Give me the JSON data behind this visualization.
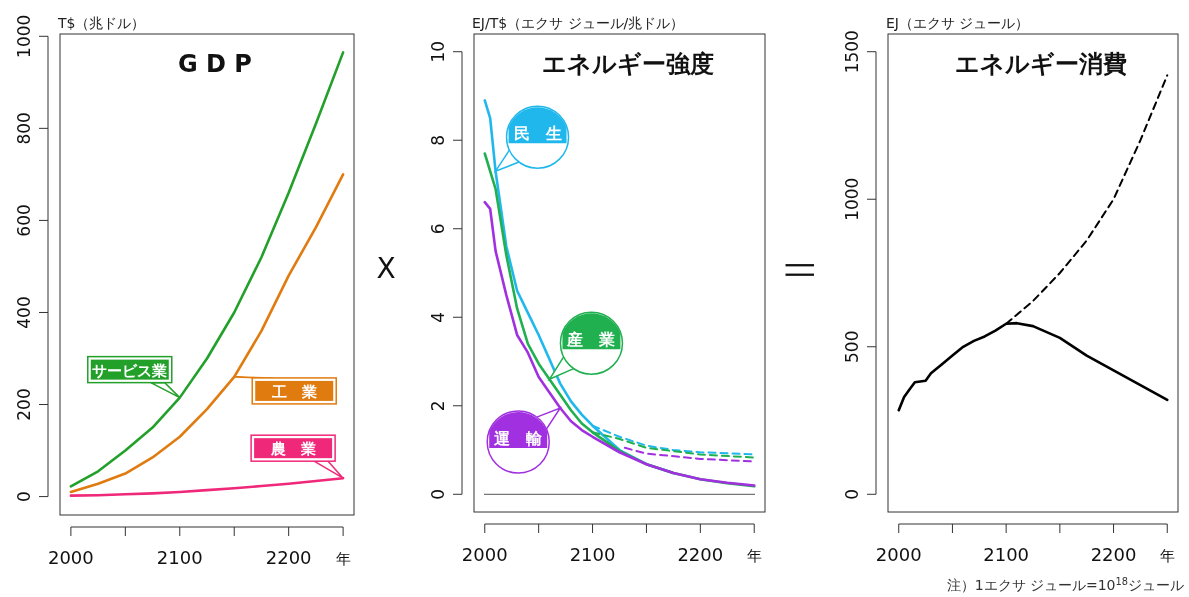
{
  "chart_data": [
    {
      "type": "line",
      "title": "G D P",
      "ylabel": "T$（兆ドル）",
      "xlim": [
        1990,
        2260
      ],
      "ylim": [
        -40,
        1005
      ],
      "xticks": [
        2000,
        {
          "value": 2050,
          "label": null
        },
        2100,
        {
          "value": 2150,
          "label": null
        },
        2200,
        {
          "value": 2250,
          "label": "年"
        }
      ],
      "yticks": [
        0,
        200,
        400,
        600,
        800,
        1000
      ],
      "grid": false,
      "series": [
        {
          "name": "サービス業",
          "color": "#22a02a",
          "x": [
            2000,
            2025,
            2050,
            2075,
            2100,
            2125,
            2150,
            2175,
            2200,
            2225,
            2250
          ],
          "values": [
            22,
            55,
            100,
            150,
            215,
            300,
            400,
            520,
            660,
            810,
            965
          ]
        },
        {
          "name": "工　業",
          "color": "#e07b10",
          "x": [
            2000,
            2025,
            2050,
            2075,
            2100,
            2125,
            2150,
            2175,
            2200,
            2225,
            2250
          ],
          "values": [
            10,
            28,
            50,
            85,
            130,
            190,
            260,
            360,
            480,
            585,
            700
          ]
        },
        {
          "name": "農　業",
          "color": "#f0287a",
          "x": [
            2000,
            2025,
            2050,
            2075,
            2100,
            2125,
            2150,
            2175,
            2200,
            2225,
            2250
          ],
          "values": [
            2,
            3,
            5,
            7,
            10,
            14,
            18,
            23,
            28,
            34,
            40
          ]
        }
      ]
    },
    {
      "type": "line",
      "title": "エネルギー強度",
      "ylabel": "EJ/T$（エクサ ジュール/兆ドル）",
      "xlim": [
        1990,
        2260
      ],
      "ylim": [
        -0.4,
        10.4
      ],
      "xticks": [
        2000,
        {
          "value": 2050,
          "label": null
        },
        2100,
        {
          "value": 2150,
          "label": null
        },
        2200,
        {
          "value": 2250,
          "label": "年"
        }
      ],
      "yticks": [
        0,
        2,
        4,
        6,
        8,
        10
      ],
      "grid": false,
      "annotations": [
        "X"
      ],
      "ref_lines": [
        {
          "axis": "y",
          "value": 0,
          "color": "#777777"
        }
      ],
      "series": [
        {
          "name": "民　生",
          "color": "#20b8ec",
          "x": [
            2000,
            2005,
            2010,
            2020,
            2030,
            2040,
            2050,
            2060,
            2070,
            2080,
            2090,
            2100,
            2125,
            2150,
            2175
          ],
          "values": [
            8.9,
            8.5,
            7.3,
            5.6,
            4.6,
            4.1,
            3.6,
            3.05,
            2.5,
            2.1,
            1.8,
            1.55,
            1.0,
            0.68,
            0.48
          ]
        },
        {
          "name": "産　業",
          "color": "#20b050",
          "x": [
            2000,
            2010,
            2020,
            2030,
            2040,
            2050,
            2060,
            2070,
            2080,
            2090,
            2100,
            2125,
            2150,
            2175,
            2200,
            2225,
            2250
          ],
          "values": [
            7.7,
            6.9,
            5.4,
            4.2,
            3.4,
            2.95,
            2.6,
            2.25,
            1.9,
            1.6,
            1.4,
            0.98,
            0.68,
            0.48,
            0.34,
            0.25,
            0.18
          ]
        },
        {
          "name": "運　輸",
          "color": "#a030e0",
          "x": [
            2000,
            2005,
            2010,
            2020,
            2030,
            2040,
            2050,
            2060,
            2070,
            2080,
            2090,
            2100,
            2125,
            2150,
            2175,
            2200,
            2225,
            2250
          ],
          "values": [
            6.6,
            6.45,
            5.5,
            4.5,
            3.6,
            3.2,
            2.65,
            2.3,
            1.95,
            1.65,
            1.45,
            1.3,
            0.95,
            0.68,
            0.48,
            0.34,
            0.26,
            0.2
          ]
        },
        {
          "color": "#20b8ec",
          "line_style": "dashed",
          "x": [
            2100,
            2125,
            2150,
            2175,
            2200,
            2250
          ],
          "values": [
            1.55,
            1.3,
            1.1,
            1.0,
            0.95,
            0.9
          ]
        },
        {
          "color": "#20b050",
          "line_style": "dashed",
          "x": [
            2100,
            2125,
            2150,
            2200,
            2250
          ],
          "values": [
            1.4,
            1.25,
            1.05,
            0.9,
            0.83
          ]
        },
        {
          "color": "#a030e0",
          "line_style": "dashed",
          "x": [
            2130,
            2150,
            2200,
            2250
          ],
          "values": [
            1.05,
            0.92,
            0.8,
            0.74
          ]
        }
      ]
    },
    {
      "type": "line",
      "title": "エネルギー消費",
      "ylabel": "EJ（エクサ ジュール）",
      "xlim": [
        1990,
        2260
      ],
      "ylim": [
        -60,
        1560
      ],
      "xticks": [
        2000,
        {
          "value": 2050,
          "label": null
        },
        2100,
        {
          "value": 2150,
          "label": null
        },
        2200,
        {
          "value": 2250,
          "label": "年"
        }
      ],
      "yticks": [
        0,
        500,
        1000,
        1500
      ],
      "grid": false,
      "annotations": [
        "||",
        "注）1エクサ ジュール=10$^{18}$ジュール"
      ],
      "series": [
        {
          "color": "#000000",
          "x": [
            2000,
            2005,
            2010,
            2015,
            2025,
            2030,
            2040,
            2050,
            2060,
            2070,
            2080,
            2090,
            2100,
            2110,
            2125,
            2150,
            2175,
            2200,
            2225,
            2250
          ],
          "values": [
            285,
            330,
            355,
            380,
            385,
            410,
            440,
            470,
            500,
            520,
            535,
            555,
            578,
            580,
            570,
            530,
            470,
            420,
            370,
            320
          ]
        },
        {
          "color": "#000000",
          "line_style": "dashed",
          "x": [
            2100,
            2125,
            2150,
            2175,
            2200,
            2225,
            2250
          ],
          "values": [
            578,
            655,
            750,
            860,
            1000,
            1200,
            1420
          ]
        }
      ]
    }
  ]
}
